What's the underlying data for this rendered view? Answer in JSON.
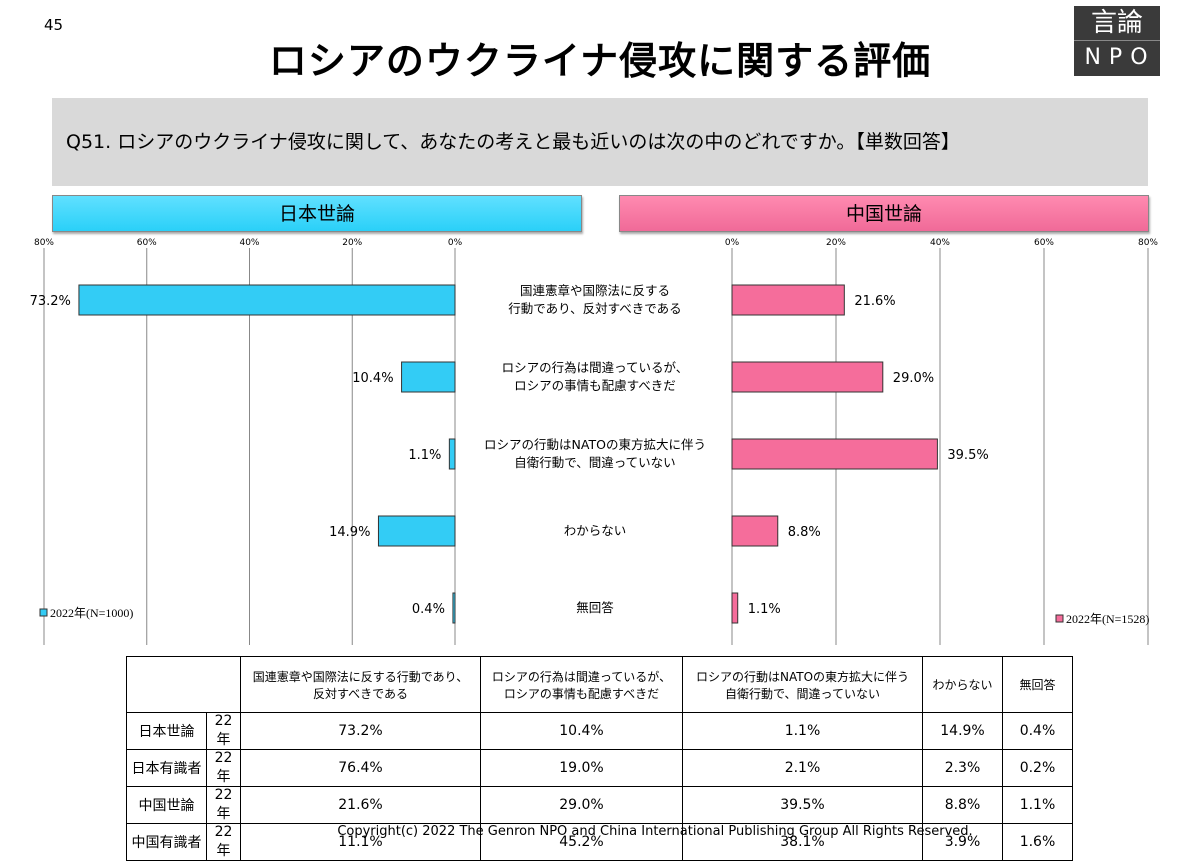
{
  "page_number": "45",
  "title": "ロシアのウクライナ侵攻に関する評価",
  "logo": {
    "top": "言論",
    "bottom": "NPO"
  },
  "question": "Q51. ロシアのウクライナ侵攻に関して、あなたの考えと最も近いのは次の中のどれですか。【単数回答】",
  "chart_data": [
    {
      "type": "bar",
      "orientation": "horizontal",
      "direction": "leftward",
      "title": "日本世論",
      "legend": "2022年(N=1000)",
      "legend_position": "bottom-left",
      "color": "#33ccf5",
      "categories": [
        "国連憲章や国際法に反する行動であり、反対すべきである",
        "ロシアの行為は間違っているが、ロシアの事情も配慮すべきだ",
        "ロシアの行動はNATOの東方拡大に伴う自衛行動で、間違っていない",
        "わからない",
        "無回答"
      ],
      "values": [
        73.2,
        10.4,
        1.1,
        14.9,
        0.4
      ],
      "labels": [
        "73.2%",
        "10.4%",
        "1.1%",
        "14.9%",
        "0.4%"
      ],
      "xlim": [
        0,
        80
      ],
      "ticks": [
        "80%",
        "60%",
        "40%",
        "20%",
        "0%"
      ],
      "grid": true
    },
    {
      "type": "bar",
      "orientation": "horizontal",
      "direction": "rightward",
      "title": "中国世論",
      "legend": "2022年(N=1528)",
      "legend_position": "bottom-right",
      "color": "#f56d9b",
      "values": [
        21.6,
        29.0,
        39.5,
        8.8,
        1.1
      ],
      "labels": [
        "21.6%",
        "29.0%",
        "39.5%",
        "8.8%",
        "1.1%"
      ],
      "xlim": [
        0,
        80
      ],
      "ticks": [
        "0%",
        "20%",
        "40%",
        "60%",
        "80%"
      ],
      "grid": true
    }
  ],
  "category_labels": [
    [
      "国連憲章や国際法に反する",
      "行動であり、反対すべきである"
    ],
    [
      "ロシアの行為は間違っているが、",
      "ロシアの事情も配慮すべきだ"
    ],
    [
      "ロシアの行動はNATOの東方拡大に伴う",
      "自衛行動で、間違っていない"
    ],
    [
      "わからない"
    ],
    [
      "無回答"
    ]
  ],
  "table": {
    "headers": [
      "国連憲章や国際法に反する行動であり、\n反対すべきである",
      "ロシアの行為は間違っているが、\nロシアの事情も配慮すべきだ",
      "ロシアの行動はNATOの東方拡大に伴う\n自衛行動で、間違っていない",
      "わからない",
      "無回答"
    ],
    "rows": [
      {
        "group": "日本世論",
        "year": "22年",
        "values": [
          "73.2%",
          "10.4%",
          "1.1%",
          "14.9%",
          "0.4%"
        ]
      },
      {
        "group": "日本有識者",
        "year": "22年",
        "values": [
          "76.4%",
          "19.0%",
          "2.1%",
          "2.3%",
          "0.2%"
        ]
      },
      {
        "group": "中国世論",
        "year": "22年",
        "values": [
          "21.6%",
          "29.0%",
          "39.5%",
          "8.8%",
          "1.1%"
        ]
      },
      {
        "group": "中国有識者",
        "year": "22年",
        "values": [
          "11.1%",
          "45.2%",
          "38.1%",
          "3.9%",
          "1.6%"
        ]
      }
    ]
  },
  "copyright": "Copyright(c) 2022 The Genron NPO and China International Publishing Group All Rights Reserved."
}
